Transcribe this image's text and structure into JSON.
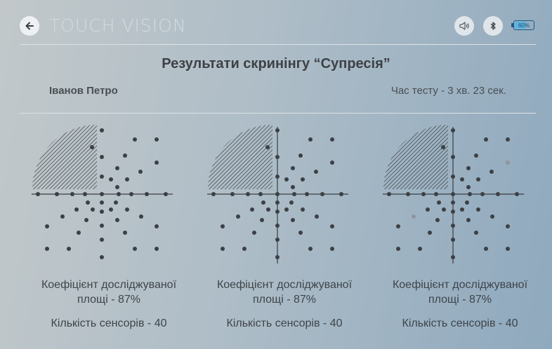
{
  "header": {
    "back_icon": "arrow-left-icon",
    "logo_text": "TOUCH VISION",
    "sound_icon": "speaker-icon",
    "bluetooth_icon": "bluetooth-icon",
    "battery": {
      "label": "60%",
      "level": 0.6,
      "color": "#5bb5e0"
    }
  },
  "title": "Результати скринінгу “Супресія”",
  "patient_name": "Іванов Петро",
  "test_time": "Час тесту - 3 хв. 23 сек.",
  "results": [
    {
      "coefficient_label": "Коефіцієнт досліджуваної площі - 87%",
      "sensors_label": "Кількість сенсорів - 40",
      "axes": "horizontal",
      "gray_points": []
    },
    {
      "coefficient_label": "Коефіцієнт досліджуваної площі - 87%",
      "sensors_label": "Кількість сенсорів - 40",
      "axes": "both",
      "gray_points": []
    },
    {
      "coefficient_label": "Коефіцієнт досліджуваної площі - 87%",
      "sensors_label": "Кількість сенсорів - 40",
      "axes": "both",
      "gray_points": [
        8,
        29
      ]
    }
  ]
}
